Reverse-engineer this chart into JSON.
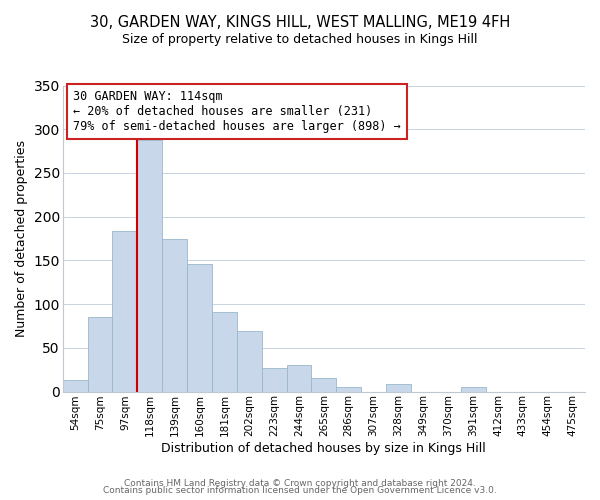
{
  "title_line1": "30, GARDEN WAY, KINGS HILL, WEST MALLING, ME19 4FH",
  "title_line2": "Size of property relative to detached houses in Kings Hill",
  "xlabel": "Distribution of detached houses by size in Kings Hill",
  "ylabel": "Number of detached properties",
  "bar_labels": [
    "54sqm",
    "75sqm",
    "97sqm",
    "118sqm",
    "139sqm",
    "160sqm",
    "181sqm",
    "202sqm",
    "223sqm",
    "244sqm",
    "265sqm",
    "286sqm",
    "307sqm",
    "328sqm",
    "349sqm",
    "370sqm",
    "391sqm",
    "412sqm",
    "433sqm",
    "454sqm",
    "475sqm"
  ],
  "bar_values": [
    13,
    85,
    184,
    288,
    175,
    146,
    91,
    69,
    27,
    30,
    15,
    5,
    0,
    9,
    0,
    0,
    5,
    0,
    0,
    0,
    0
  ],
  "bar_color": "#c8d8ea",
  "bar_edge_color": "#9ab8cc",
  "vline_x": 3,
  "vline_color": "#cc0000",
  "annotation_line1": "30 GARDEN WAY: 114sqm",
  "annotation_line2": "← 20% of detached houses are smaller (231)",
  "annotation_line3": "79% of semi-detached houses are larger (898) →",
  "annotation_box_color": "white",
  "annotation_box_edge": "#cc2222",
  "ylim": [
    0,
    350
  ],
  "yticks": [
    0,
    50,
    100,
    150,
    200,
    250,
    300,
    350
  ],
  "footer_line1": "Contains HM Land Registry data © Crown copyright and database right 2024.",
  "footer_line2": "Contains public sector information licensed under the Open Government Licence v3.0.",
  "bg_color": "#ffffff",
  "plot_bg_color": "#ffffff",
  "grid_color": "#c8d4e0",
  "title_fontsize": 10.5,
  "subtitle_fontsize": 9,
  "annotation_fontsize": 8.5,
  "xlabel_fontsize": 9,
  "ylabel_fontsize": 9,
  "tick_fontsize": 7.5,
  "footer_fontsize": 6.5
}
